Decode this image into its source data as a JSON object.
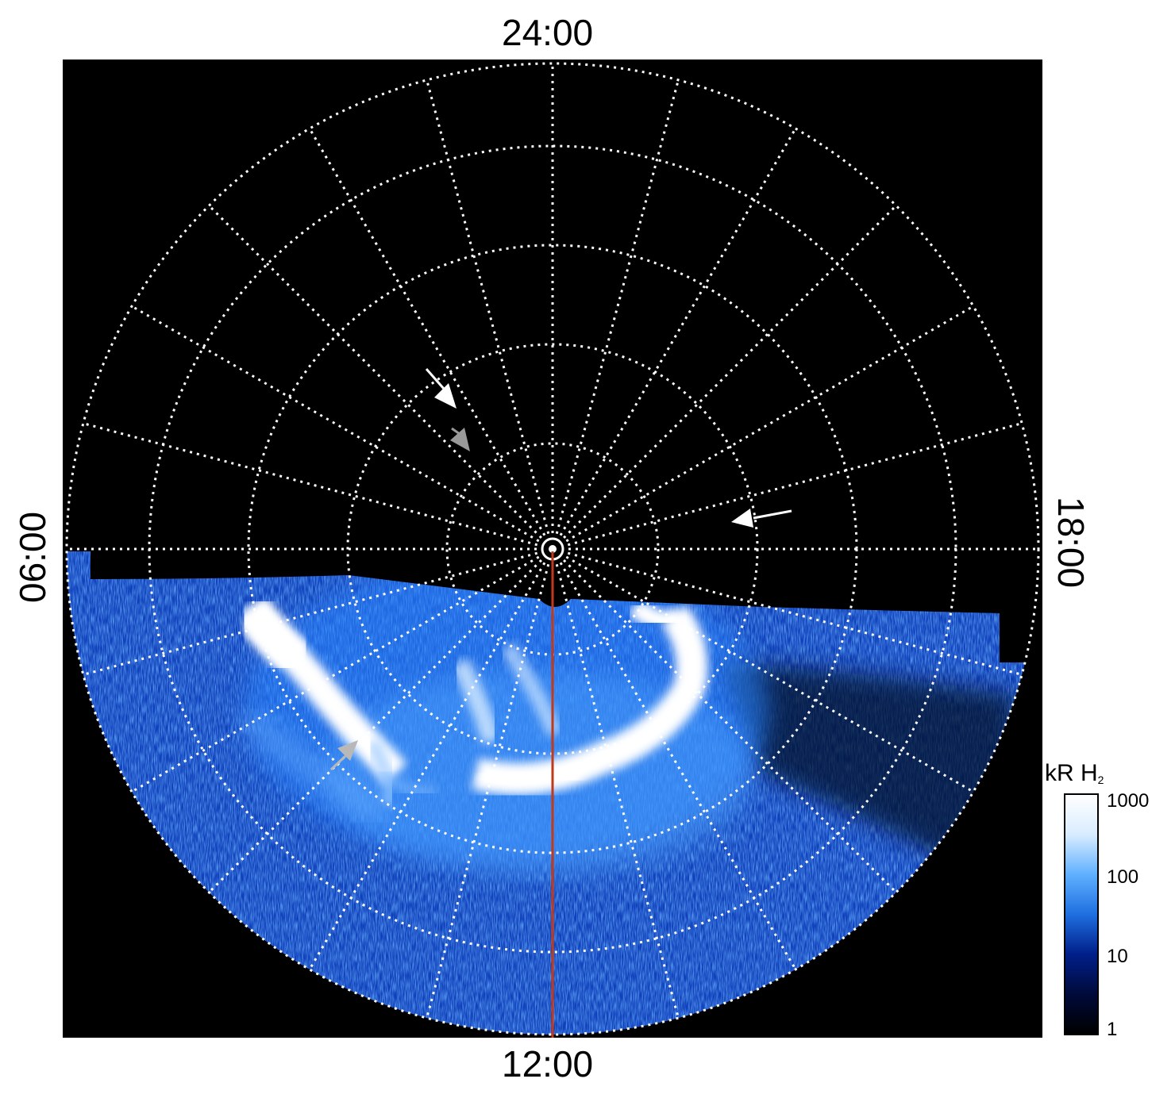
{
  "map": {
    "label_top": "24:00",
    "label_bottom": "12:00",
    "label_left": "06:00",
    "label_right": "18:00",
    "background": "#000000",
    "grid_color": "#ffffff",
    "meridian_line_color": "#c0391b"
  },
  "colorbar": {
    "title_main": "kR H",
    "title_sub": "2",
    "ticks": [
      "1000",
      "100",
      "10",
      "1"
    ],
    "colors": [
      "#000000",
      "#000a3a",
      "#001f8a",
      "#1f6fe0",
      "#5fb0ff",
      "#d8ecff",
      "#ffffff"
    ]
  },
  "annotations": [
    {
      "name": "arrow-white-upper",
      "color": "#ffffff"
    },
    {
      "name": "arrow-gray-upper",
      "color": "#9a9a9a"
    },
    {
      "name": "arrow-white-right",
      "color": "#ffffff"
    },
    {
      "name": "arrow-gray-lower",
      "color": "#b8b8b8"
    }
  ]
}
